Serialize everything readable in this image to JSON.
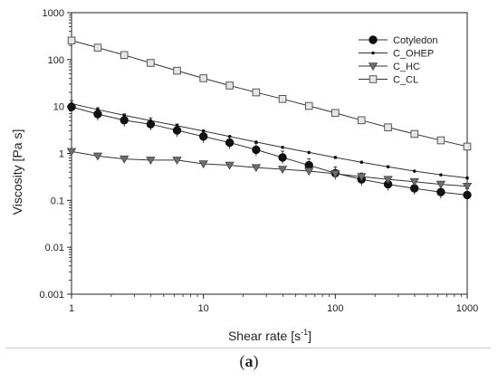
{
  "chart_data": {
    "type": "scatter",
    "xscale": "log",
    "yscale": "log",
    "xlim": [
      1,
      1000
    ],
    "ylim": [
      0.001,
      1000
    ],
    "xlabel_main": "Shear rate [s",
    "xlabel_sup": "-1",
    "xlabel_end": "]",
    "ylabel": "Viscosity [Pa s]",
    "xticks": [
      1,
      10,
      100,
      1000
    ],
    "xtick_labels": [
      "1",
      "10",
      "100",
      "1000"
    ],
    "yticks": [
      0.001,
      0.01,
      0.1,
      1,
      10,
      100,
      1000
    ],
    "ytick_labels": [
      "0.001",
      "0.01",
      "0.1",
      "1",
      "10",
      "100",
      "1000"
    ],
    "grid": false,
    "legend_position": "top-right",
    "series": [
      {
        "name": "Cotyledon",
        "marker": "circle-filled",
        "x": [
          1,
          1.58,
          2.51,
          3.98,
          6.31,
          10,
          15.8,
          25.1,
          39.8,
          63.1,
          100,
          158,
          251,
          398,
          631,
          1000
        ],
        "y": [
          9.8,
          6.9,
          5.1,
          4.2,
          3.1,
          2.3,
          1.7,
          1.2,
          0.82,
          0.56,
          0.38,
          0.28,
          0.22,
          0.18,
          0.15,
          0.13
        ]
      },
      {
        "name": "C_OHEP",
        "marker": "dot",
        "x": [
          1,
          1.58,
          2.51,
          3.98,
          6.31,
          10,
          15.8,
          25.1,
          39.8,
          63.1,
          100,
          158,
          251,
          398,
          631,
          1000
        ],
        "y": [
          11.5,
          8.6,
          6.5,
          5.0,
          3.9,
          3.0,
          2.3,
          1.75,
          1.35,
          1.05,
          0.82,
          0.65,
          0.52,
          0.42,
          0.35,
          0.3
        ]
      },
      {
        "name": "C_HC",
        "marker": "triangle-down",
        "x": [
          1,
          1.58,
          2.51,
          3.98,
          6.31,
          10,
          15.8,
          25.1,
          39.8,
          63.1,
          100,
          158,
          251,
          398,
          631,
          1000
        ],
        "y": [
          1.1,
          0.88,
          0.76,
          0.72,
          0.72,
          0.6,
          0.56,
          0.5,
          0.46,
          0.42,
          0.37,
          0.32,
          0.28,
          0.25,
          0.22,
          0.2
        ]
      },
      {
        "name": "C_CL",
        "marker": "square-open",
        "x": [
          1,
          1.58,
          2.51,
          3.98,
          6.31,
          10,
          15.8,
          25.1,
          39.8,
          63.1,
          100,
          158,
          251,
          398,
          631,
          1000
        ],
        "y": [
          255,
          180,
          125,
          85,
          58,
          40,
          28,
          20,
          14.5,
          10.3,
          7.3,
          5.1,
          3.6,
          2.6,
          1.9,
          1.4
        ]
      }
    ]
  },
  "panel": {
    "label_open": "(",
    "label_letter": "a",
    "label_close": ")"
  }
}
